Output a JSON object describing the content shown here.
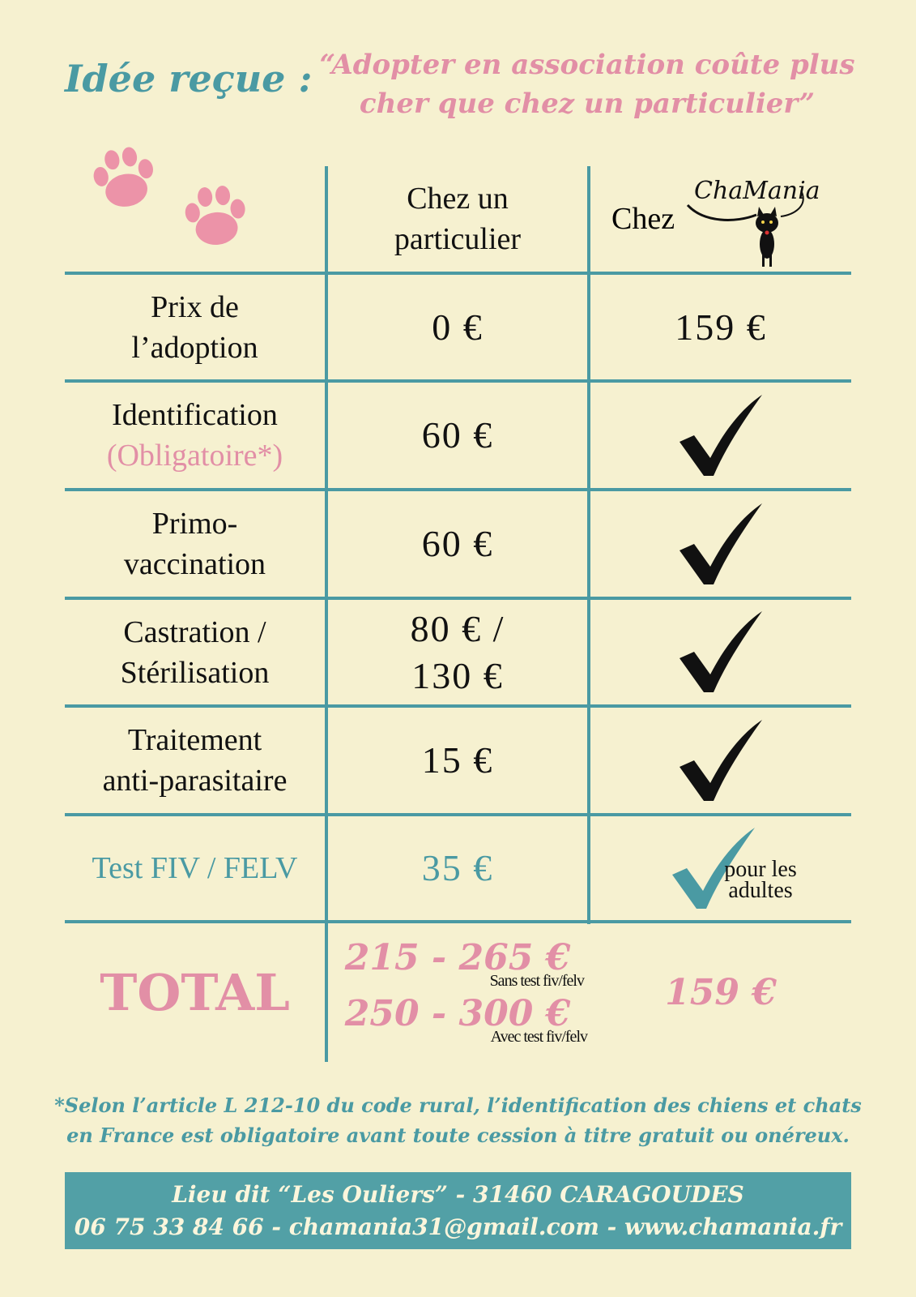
{
  "header": {
    "idee": "Idée reçue :",
    "quote_line1": "“Adopter en association coûte plus",
    "quote_line2": "cher que chez un particulier”"
  },
  "columns": {
    "particulier_line1": "Chez un",
    "particulier_line2": "particulier",
    "chamania_prefix": "Chez",
    "logo_text": "ChaMania"
  },
  "rows": [
    {
      "label_line1": "Prix de",
      "label_line2": "l’adoption",
      "particulier": "0 €",
      "chamania": "159 €"
    },
    {
      "label_line1": "Identification",
      "label_line2": "(Obligatoire*)",
      "particulier": "60 €"
    },
    {
      "label_line1": "Primo-",
      "label_line2": "vaccination",
      "particulier": "60 €"
    },
    {
      "label_line1": "Castration /",
      "label_line2": "Stérilisation",
      "particulier_line1": "80 € /",
      "particulier_line2": "130 €"
    },
    {
      "label_line1": "Traitement",
      "label_line2": "anti-parasitaire",
      "particulier": "15 €"
    },
    {
      "label": "Test FIV / FELV",
      "particulier": "35 €",
      "note_line1": "pour les",
      "note_line2": "adultes"
    }
  ],
  "total": {
    "label": "TOTAL",
    "range1": "215 - 265 €",
    "range1_note": "Sans test fiv/felv",
    "range2": "250 - 300 €",
    "range2_note": "Avec test fiv/felv",
    "chamania": "159 €"
  },
  "footnote": {
    "line1": "*Selon l’article L 212-10 du code rural, l’identification des chiens et chats",
    "line2": "en France est obligatoire avant toute cession à titre gratuit ou onéreux."
  },
  "footer": {
    "line1": "Lieu dit “Les Ouliers” - 31460 CARAGOUDES",
    "line2": "06 75 33 84 66 - chamania31@gmail.com - www.chamania.fr"
  },
  "colors": {
    "background": "#f6f1d0",
    "teal": "#4a9aa3",
    "pink": "#e28fa6"
  },
  "icons": [
    "paw-icon",
    "check-icon",
    "cat-logo-icon"
  ]
}
